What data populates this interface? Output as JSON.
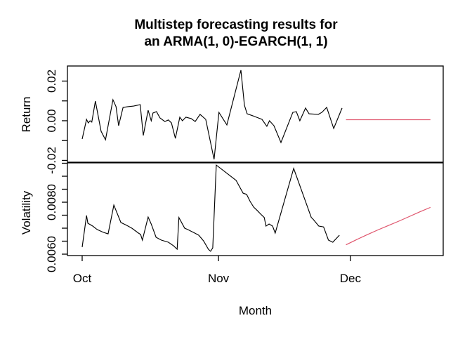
{
  "title": {
    "line1": "Multistep forecasting results for",
    "line2": "an ARMA(1, 0)-EGARCH(1, 1)"
  },
  "colors": {
    "observed": "#000000",
    "forecast": "#DF536B",
    "axis": "#000000",
    "text": "#000000",
    "background": "#FFFFFF"
  },
  "chart_data": {
    "type": "line",
    "title": "Multistep forecasting results for an ARMA(1, 0)-EGARCH(1, 1)",
    "xlabel": "Month",
    "x_unit": "days since Oct 1 (Oct=0, Nov=31, Dec=61)",
    "xlim": [
      -3.35,
      82.1
    ],
    "grid": false,
    "legend": "none",
    "x_ticks": [
      {
        "t": 0,
        "label": "Oct"
      },
      {
        "t": 31,
        "label": "Nov"
      },
      {
        "t": 61,
        "label": "Dec"
      }
    ],
    "panels": [
      {
        "name": "return-panel",
        "ylabel": "Return",
        "ylim": [
          -0.0209,
          0.0276
        ],
        "y_ticks": [
          {
            "v": 0.02,
            "label": "0.02"
          },
          {
            "v": 0.01,
            "label": ""
          },
          {
            "v": 0.0,
            "label": "0.00"
          },
          {
            "v": -0.01,
            "label": ""
          },
          {
            "v": -0.02,
            "label": "-0.02"
          }
        ],
        "series": [
          {
            "name": "observed_return",
            "color": "#000000",
            "points": [
              [
                0,
                -0.0092
              ],
              [
                1,
                0.0007
              ],
              [
                1.4,
                -0.0011
              ],
              [
                1.8,
                0
              ],
              [
                2.2,
                -0.0007
              ],
              [
                3,
                0.0099
              ],
              [
                4.3,
                -0.0053
              ],
              [
                5.3,
                -0.0096
              ],
              [
                7,
                0.0106
              ],
              [
                7.7,
                0.0071
              ],
              [
                8.3,
                -0.0025
              ],
              [
                9.3,
                0.0067
              ],
              [
                10.4,
                0.0071
              ],
              [
                11.7,
                0.0074
              ],
              [
                13.2,
                0.0081
              ],
              [
                13.9,
                -0.0074
              ],
              [
                15,
                0.0053
              ],
              [
                15.7,
                0
              ],
              [
                16.1,
                0.0039
              ],
              [
                16.9,
                0.0046
              ],
              [
                17.7,
                0.0014
              ],
              [
                18.8,
                -0.0004
              ],
              [
                19.6,
                0.0004
              ],
              [
                20.3,
                -0.0011
              ],
              [
                21.2,
                -0.0089
              ],
              [
                22.2,
                0.0018
              ],
              [
                22.8,
                0
              ],
              [
                23.6,
                0.0018
              ],
              [
                24.8,
                0.0011
              ],
              [
                25.7,
                -0.0004
              ],
              [
                26.8,
                0.0032
              ],
              [
                28.1,
                0.0007
              ],
              [
                30,
                -0.0195
              ],
              [
                31.1,
                0.0042
              ],
              [
                32.9,
                -0.0021
              ],
              [
                36.1,
                0.0255
              ],
              [
                36.9,
                0.0078
              ],
              [
                37.5,
                0.0035
              ],
              [
                38.8,
                0.0025
              ],
              [
                39.6,
                0.0018
              ],
              [
                40.9,
                0.0007
              ],
              [
                42,
                -0.0028
              ],
              [
                42.6,
                0
              ],
              [
                43.6,
                -0.0025
              ],
              [
                45.2,
                -0.011
              ],
              [
                47.9,
                0.0042
              ],
              [
                48.7,
                0.0046
              ],
              [
                49.5,
                0
              ],
              [
                50.8,
                0.0064
              ],
              [
                51.6,
                0.0035
              ],
              [
                53.7,
                0.0032
              ],
              [
                54.5,
                0.0042
              ],
              [
                55.6,
                0.0067
              ],
              [
                57.2,
                -0.0039
              ],
              [
                59.1,
                0.0064
              ]
            ]
          },
          {
            "name": "forecast_return",
            "color": "#DF536B",
            "points": [
              [
                60,
                0.0005
              ],
              [
                79.2,
                0.0005
              ]
            ]
          }
        ]
      },
      {
        "name": "volatility-panel",
        "ylabel": "Volatility",
        "ylim": [
          0.005946,
          0.009514
        ],
        "y_ticks": [
          {
            "v": 0.006,
            "label": "0.0060"
          },
          {
            "v": 0.0065,
            "label": ""
          },
          {
            "v": 0.007,
            "label": ""
          },
          {
            "v": 0.0075,
            "label": ""
          },
          {
            "v": 0.008,
            "label": "0.0080"
          },
          {
            "v": 0.0085,
            "label": ""
          },
          {
            "v": 0.009,
            "label": ""
          },
          {
            "v": 0.0095,
            "label": ""
          }
        ],
        "series": [
          {
            "name": "observed_volatility",
            "color": "#000000",
            "points": [
              [
                0,
                0.00627
              ],
              [
                1,
                0.00749
              ],
              [
                1.3,
                0.00719
              ],
              [
                2.4,
                0.00708
              ],
              [
                3.4,
                0.00695
              ],
              [
                4.8,
                0.00684
              ],
              [
                5.9,
                0.00678
              ],
              [
                7.2,
                0.00789
              ],
              [
                7.7,
                0.00768
              ],
              [
                8.8,
                0.00722
              ],
              [
                10.1,
                0.00711
              ],
              [
                11.3,
                0.007
              ],
              [
                12.8,
                0.00681
              ],
              [
                13.3,
                0.00676
              ],
              [
                13.7,
                0.00654
              ],
              [
                15,
                0.00743
              ],
              [
                15.7,
                0.00716
              ],
              [
                16.8,
                0.00665
              ],
              [
                18,
                0.00654
              ],
              [
                19.6,
                0.00646
              ],
              [
                20.8,
                0.00632
              ],
              [
                21.6,
                0.00619
              ],
              [
                22,
                0.00741
              ],
              [
                23.3,
                0.007
              ],
              [
                24,
                0.00695
              ],
              [
                25.6,
                0.00681
              ],
              [
                26.5,
                0.00673
              ],
              [
                27.6,
                0.00651
              ],
              [
                28.7,
                0.00619
              ],
              [
                29.2,
                0.00611
              ],
              [
                29.7,
                0.00624
              ],
              [
                30.5,
                0.00943
              ],
              [
                35,
                0.00884
              ],
              [
                36.6,
                0.00835
              ],
              [
                37.4,
                0.0083
              ],
              [
                38.2,
                0.00803
              ],
              [
                39,
                0.00781
              ],
              [
                39.8,
                0.00768
              ],
              [
                40.6,
                0.00754
              ],
              [
                41.4,
                0.00741
              ],
              [
                41.8,
                0.00708
              ],
              [
                42.5,
                0.00716
              ],
              [
                43.3,
                0.00708
              ],
              [
                43.9,
                0.00681
              ],
              [
                48.1,
                0.0093
              ],
              [
                52.1,
                0.00741
              ],
              [
                52.5,
                0.00735
              ],
              [
                53.8,
                0.00708
              ],
              [
                54.9,
                0.00705
              ],
              [
                56,
                0.00654
              ],
              [
                57,
                0.00646
              ],
              [
                58.5,
                0.00673
              ]
            ]
          },
          {
            "name": "forecast_volatility",
            "color": "#DF536B",
            "points": [
              [
                60,
                0.00636
              ],
              [
                62.4,
                0.00656
              ],
              [
                64.8,
                0.00675
              ],
              [
                67.2,
                0.00693
              ],
              [
                69.6,
                0.0071
              ],
              [
                72,
                0.00727
              ],
              [
                74.4,
                0.00745
              ],
              [
                76.8,
                0.00763
              ],
              [
                79.2,
                0.0078
              ]
            ]
          }
        ]
      }
    ]
  }
}
